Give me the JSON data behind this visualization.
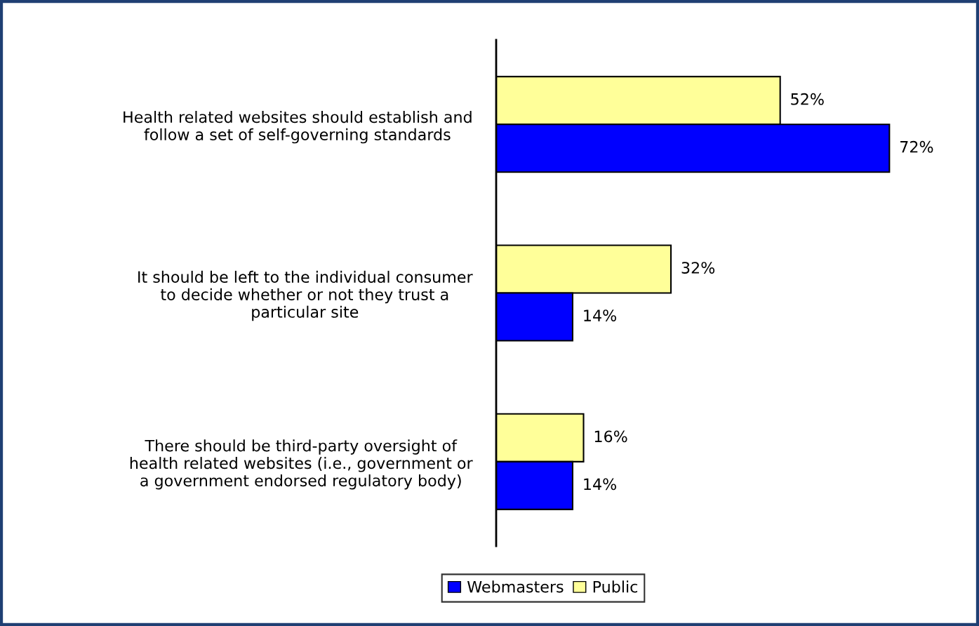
{
  "chart_data": {
    "type": "bar",
    "orientation": "horizontal",
    "categories": [
      "Health related websites should establish and\nfollow a set of self-governing standards",
      "It should be left to the individual consumer\nto decide whether or not they trust a\nparticular site",
      "There should be third-party oversight of\nhealth related websites (i.e., government or\na government endorsed regulatory body)"
    ],
    "series": [
      {
        "name": "Public",
        "color": "#ffff99",
        "values": [
          52,
          32,
          16
        ],
        "value_labels": [
          "52%",
          "32%",
          "16%"
        ]
      },
      {
        "name": "Webmasters",
        "color": "#0000ff",
        "values": [
          72,
          14,
          14
        ],
        "value_labels": [
          "72%",
          "14%",
          "14%"
        ]
      }
    ],
    "legend": "bottom"
  }
}
